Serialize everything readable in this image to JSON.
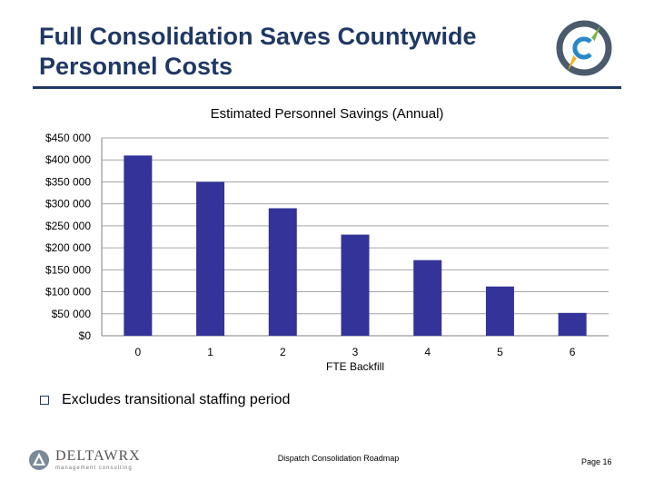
{
  "slide": {
    "title": "Full Consolidation Saves Countywide Personnel Costs",
    "note": "Excludes transitional staffing period",
    "footer_center": "Dispatch Consolidation Roadmap",
    "footer_page": "Page 16",
    "company_name": "DELTAWRX",
    "company_sub": "management consulting",
    "bullet_icon": "checkbox-square",
    "logo_icon": "compass-c-logo"
  },
  "colors": {
    "bar": "#333399",
    "title": "#1f3864",
    "axis": "#808080",
    "grid": "#a6a6a6"
  },
  "chart_data": {
    "type": "bar",
    "title": "Estimated Personnel Savings (Annual)",
    "xlabel": "FTE Backfill",
    "ylabel": "",
    "categories": [
      "0",
      "1",
      "2",
      "3",
      "4",
      "5",
      "6"
    ],
    "values": [
      410000,
      350000,
      290000,
      230000,
      172000,
      112000,
      52000
    ],
    "ylim": [
      0,
      450000
    ],
    "yticks": [
      0,
      50000,
      100000,
      150000,
      200000,
      250000,
      300000,
      350000,
      400000,
      450000
    ],
    "ytick_labels": [
      "$0",
      "$50 000",
      "$100 000",
      "$150 000",
      "$200 000",
      "$250 000",
      "$300 000",
      "$350 000",
      "$400 000",
      "$450 000"
    ],
    "grid": true,
    "legend": "none"
  }
}
